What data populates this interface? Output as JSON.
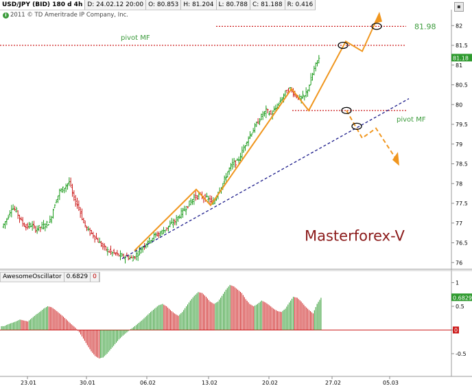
{
  "header": {
    "symbol": "USD/JPY (BID) 180 d 4h",
    "date": "D: 24.02.12 20:00",
    "open": "O: 80.853",
    "high": "H: 81.204",
    "low": "L: 80.788",
    "close": "C: 81.188",
    "range": "R: 0.416",
    "copyright": "2011 © TD Ameritrade IP Company, Inc."
  },
  "oscillator_header": {
    "name": "AwesomeOscillator",
    "value": "0.6829",
    "zero": "0"
  },
  "chart_data": [
    {
      "type": "bar",
      "title": "USD/JPY (BID) 180 d 4h",
      "watermark": "Masterforex-V",
      "ylim": [
        75.9,
        82.3
      ],
      "yticks": [
        "76",
        "76.5",
        "77",
        "77.5",
        "78",
        "78.5",
        "79",
        "79.5",
        "80",
        "80.5",
        "81",
        "81.5",
        "82"
      ],
      "last_price_tag": "81.18",
      "xticks": [
        "23.01",
        "30.01",
        "06.02",
        "13.02",
        "20.02",
        "27.02",
        "05.03"
      ],
      "annotations": {
        "pivot_upper_label": "pivot MF",
        "pivot_lower_label": "pivot MF",
        "target_label": "81.98",
        "target_value": 81.98,
        "pivot_upper_value": 81.5,
        "pivot_lower_value": 79.85,
        "trend_line_from": 76.1,
        "trend_line_to": 80.15
      },
      "price_path": [
        76.9,
        77.1,
        77.4,
        77.3,
        77.05,
        76.9,
        76.95,
        76.85,
        76.9,
        76.95,
        77.05,
        77.5,
        77.8,
        77.9,
        78.05,
        77.6,
        77.4,
        77.0,
        76.8,
        76.7,
        76.55,
        76.4,
        76.3,
        76.25,
        76.2,
        76.15,
        76.15,
        76.1,
        76.2,
        76.35,
        76.5,
        76.6,
        76.7,
        76.75,
        76.85,
        76.95,
        77.05,
        77.2,
        77.35,
        77.5,
        77.65,
        77.7,
        77.65,
        77.6,
        77.5,
        77.8,
        78.0,
        78.3,
        78.5,
        78.55,
        78.8,
        79.1,
        79.3,
        79.5,
        79.7,
        79.85,
        79.75,
        79.9,
        80.1,
        80.3,
        80.4,
        80.25,
        80.15,
        80.2,
        80.5,
        80.9,
        81.2
      ]
    },
    {
      "type": "bar",
      "title": "AwesomeOscillator",
      "ylim": [
        -0.95,
        1.05
      ],
      "yticks": [
        "1",
        "0.5",
        "0",
        "-0.5"
      ],
      "last_value_tag": "0.6829",
      "zero_tag": "0",
      "values": [
        0.08,
        0.12,
        0.15,
        0.18,
        0.22,
        0.2,
        0.18,
        0.25,
        0.32,
        0.38,
        0.45,
        0.5,
        0.48,
        0.42,
        0.35,
        0.28,
        0.2,
        0.12,
        0.05,
        -0.05,
        -0.18,
        -0.32,
        -0.45,
        -0.55,
        -0.6,
        -0.58,
        -0.5,
        -0.4,
        -0.3,
        -0.2,
        -0.12,
        -0.05,
        0.02,
        0.08,
        0.15,
        0.22,
        0.3,
        0.38,
        0.45,
        0.52,
        0.55,
        0.5,
        0.42,
        0.35,
        0.3,
        0.38,
        0.5,
        0.62,
        0.72,
        0.8,
        0.78,
        0.7,
        0.6,
        0.55,
        0.6,
        0.72,
        0.85,
        0.95,
        0.92,
        0.85,
        0.78,
        0.65,
        0.55,
        0.5,
        0.55,
        0.62,
        0.58,
        0.52,
        0.45,
        0.4,
        0.38,
        0.45,
        0.58,
        0.7,
        0.68,
        0.6,
        0.5,
        0.42,
        0.35,
        0.55,
        0.68
      ]
    }
  ]
}
